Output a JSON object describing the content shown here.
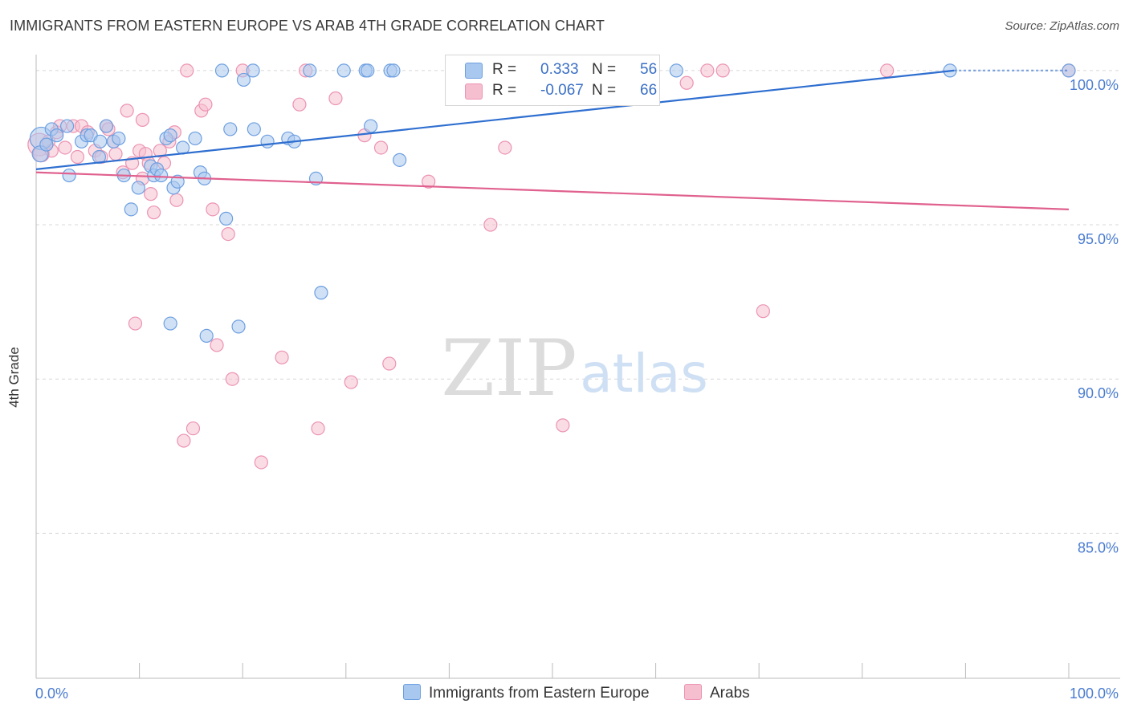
{
  "header": {
    "title": "IMMIGRANTS FROM EASTERN EUROPE VS ARAB 4TH GRADE CORRELATION CHART",
    "source": "Source: ZipAtlas.com"
  },
  "legend": {
    "rows": [
      {
        "r_label": "R =",
        "r_value": "0.333",
        "n_label": "N =",
        "n_value": "56"
      },
      {
        "r_label": "R =",
        "r_value": "-0.067",
        "n_label": "N =",
        "n_value": "66"
      }
    ]
  },
  "bottom_legend": {
    "series1": "Immigrants from Eastern Europe",
    "series2": "Arabs"
  },
  "watermark": {
    "zip": "ZIP",
    "atlas": "atlas"
  },
  "colors": {
    "blue_fill": "#a9c8ef",
    "blue_stroke": "#6d9fe0",
    "blue_line": "#2f6fd0",
    "pink_fill": "#f6bfd0",
    "pink_stroke": "#ec93b2",
    "pink_line": "#e0608e",
    "grid": "#d8d8d8",
    "tick_text": "#4a7cd0"
  },
  "chart_data": {
    "type": "scatter",
    "title": "IMMIGRANTS FROM EASTERN EUROPE VS ARAB 4TH GRADE CORRELATION CHART",
    "xlabel": "",
    "ylabel": "4th Grade",
    "xlim": [
      0,
      100
    ],
    "ylim": [
      80.3,
      100.7
    ],
    "x_tick_labels": [
      "0.0%",
      "100.0%"
    ],
    "y_ticks": [
      85,
      90,
      95,
      100
    ],
    "y_tick_labels": [
      "85.0%",
      "90.0%",
      "95.0%",
      "100.0%"
    ],
    "grid": "horizontal dashed",
    "legend_placement": "top-center",
    "series": [
      {
        "name": "Immigrants from Eastern Europe",
        "r": 0.333,
        "n": 56,
        "trend": {
          "x": [
            0,
            100
          ],
          "y": [
            96.8,
            100.4
          ]
        },
        "points": [
          [
            0.5,
            97.8,
            14
          ],
          [
            0.4,
            97.3,
            10
          ],
          [
            1.0,
            97.6,
            8
          ],
          [
            1.5,
            98.1,
            8
          ],
          [
            2.0,
            97.9,
            8
          ],
          [
            3.0,
            98.2,
            8
          ],
          [
            3.2,
            96.6,
            8
          ],
          [
            4.4,
            97.7,
            8
          ],
          [
            4.9,
            97.9,
            8
          ],
          [
            5.3,
            97.9,
            8
          ],
          [
            6.1,
            97.2,
            8
          ],
          [
            6.2,
            97.7,
            8
          ],
          [
            6.8,
            98.2,
            8
          ],
          [
            7.5,
            97.7,
            8
          ],
          [
            8.0,
            97.8,
            8
          ],
          [
            8.5,
            96.6,
            8
          ],
          [
            9.2,
            95.5,
            8
          ],
          [
            9.9,
            96.2,
            8
          ],
          [
            11.1,
            96.9,
            8
          ],
          [
            11.4,
            96.6,
            8
          ],
          [
            11.7,
            96.8,
            8
          ],
          [
            12.1,
            96.6,
            8
          ],
          [
            12.6,
            97.8,
            8
          ],
          [
            13.0,
            97.9,
            8
          ],
          [
            13.0,
            91.8,
            8
          ],
          [
            13.3,
            96.2,
            8
          ],
          [
            13.7,
            96.4,
            8
          ],
          [
            14.2,
            97.5,
            8
          ],
          [
            15.4,
            97.8,
            8
          ],
          [
            15.9,
            96.7,
            8
          ],
          [
            16.3,
            96.5,
            8
          ],
          [
            16.5,
            91.4,
            8
          ],
          [
            18.0,
            100.0,
            8
          ],
          [
            18.4,
            95.2,
            8
          ],
          [
            18.8,
            98.1,
            8
          ],
          [
            19.6,
            91.7,
            8
          ],
          [
            20.1,
            99.7,
            8
          ],
          [
            21.0,
            100.0,
            8
          ],
          [
            21.1,
            98.1,
            8
          ],
          [
            22.4,
            97.7,
            8
          ],
          [
            24.4,
            97.8,
            8
          ],
          [
            25.0,
            97.7,
            8
          ],
          [
            26.5,
            100.0,
            8
          ],
          [
            27.1,
            96.5,
            8
          ],
          [
            27.6,
            92.8,
            8
          ],
          [
            29.8,
            100.0,
            8
          ],
          [
            31.9,
            100.0,
            8
          ],
          [
            32.1,
            100.0,
            8
          ],
          [
            32.4,
            98.2,
            8
          ],
          [
            34.3,
            100.0,
            8
          ],
          [
            34.6,
            100.0,
            8
          ],
          [
            35.2,
            97.1,
            8
          ],
          [
            62.0,
            100.0,
            8
          ],
          [
            88.5,
            100.0,
            8
          ],
          [
            100.0,
            100.0,
            8
          ],
          [
            50.0,
            100.0,
            8
          ]
        ]
      },
      {
        "name": "Arabs",
        "r": -0.067,
        "n": 66,
        "trend": {
          "x": [
            0,
            100
          ],
          "y": [
            96.7,
            95.5
          ]
        },
        "points": [
          [
            0.3,
            97.6,
            14
          ],
          [
            0.5,
            97.3,
            10
          ],
          [
            1.2,
            97.7,
            8
          ],
          [
            1.5,
            97.4,
            8
          ],
          [
            2.0,
            98.0,
            8
          ],
          [
            2.3,
            98.2,
            8
          ],
          [
            2.8,
            97.5,
            8
          ],
          [
            3.6,
            98.2,
            8
          ],
          [
            4.0,
            97.2,
            8
          ],
          [
            4.4,
            98.2,
            8
          ],
          [
            5.0,
            98.0,
            8
          ],
          [
            5.7,
            97.4,
            8
          ],
          [
            6.3,
            97.2,
            8
          ],
          [
            6.8,
            98.2,
            8
          ],
          [
            7.0,
            98.1,
            8
          ],
          [
            7.5,
            97.7,
            8
          ],
          [
            7.7,
            97.3,
            8
          ],
          [
            8.4,
            96.7,
            8
          ],
          [
            8.8,
            98.7,
            8
          ],
          [
            9.3,
            97.0,
            8
          ],
          [
            9.6,
            91.8,
            8
          ],
          [
            10.0,
            97.4,
            8
          ],
          [
            10.3,
            96.5,
            8
          ],
          [
            10.3,
            98.4,
            8
          ],
          [
            10.6,
            97.3,
            8
          ],
          [
            10.9,
            97.0,
            8
          ],
          [
            11.1,
            96.0,
            8
          ],
          [
            11.4,
            95.4,
            8
          ],
          [
            12.0,
            97.4,
            8
          ],
          [
            12.4,
            97.0,
            8
          ],
          [
            12.9,
            97.7,
            8
          ],
          [
            13.4,
            98.0,
            8
          ],
          [
            13.6,
            95.8,
            8
          ],
          [
            14.3,
            88.0,
            8
          ],
          [
            15.2,
            88.4,
            8
          ],
          [
            16.0,
            98.7,
            8
          ],
          [
            16.4,
            98.9,
            8
          ],
          [
            17.1,
            95.5,
            8
          ],
          [
            17.5,
            91.1,
            8
          ],
          [
            18.6,
            94.7,
            8
          ],
          [
            19.0,
            90.0,
            8
          ],
          [
            20.0,
            100.0,
            8
          ],
          [
            21.8,
            87.3,
            8
          ],
          [
            23.8,
            90.7,
            8
          ],
          [
            25.5,
            98.9,
            8
          ],
          [
            26.1,
            100.0,
            8
          ],
          [
            27.3,
            88.4,
            8
          ],
          [
            29.0,
            99.1,
            8
          ],
          [
            30.5,
            89.9,
            8
          ],
          [
            31.8,
            97.9,
            8
          ],
          [
            33.4,
            97.5,
            8
          ],
          [
            34.2,
            90.5,
            8
          ],
          [
            38.0,
            96.4,
            8
          ],
          [
            44.0,
            95.0,
            8
          ],
          [
            45.4,
            97.5,
            8
          ],
          [
            47.5,
            100.0,
            8
          ],
          [
            48.2,
            99.5,
            8
          ],
          [
            48.9,
            100.0,
            8
          ],
          [
            51.0,
            88.5,
            8
          ],
          [
            63.0,
            99.6,
            8
          ],
          [
            65.0,
            100.0,
            8
          ],
          [
            66.5,
            100.0,
            8
          ],
          [
            70.4,
            92.2,
            8
          ],
          [
            82.4,
            100.0,
            8
          ],
          [
            100.0,
            100.0,
            8
          ],
          [
            14.6,
            100.0,
            8
          ]
        ]
      }
    ]
  }
}
